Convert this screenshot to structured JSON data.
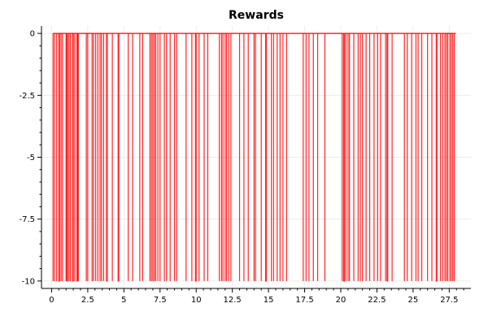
{
  "chart_data": {
    "type": "line",
    "title": "Rewards",
    "xlabel": "",
    "ylabel": "",
    "xlim": [
      -0.7,
      29.0
    ],
    "ylim": [
      -10.3,
      0.3
    ],
    "x_ticks": [
      0,
      2.5,
      5,
      7.5,
      10,
      12.5,
      15,
      17.5,
      20,
      22.5,
      25,
      27.5
    ],
    "x_tick_labels": [
      "0",
      "2.5",
      "5",
      "7.5",
      "10",
      "12.5",
      "15",
      "17.5",
      "20",
      "22.5",
      "25",
      "27.5"
    ],
    "y_ticks": [
      0,
      -2.5,
      -5,
      -7.5,
      -10
    ],
    "y_tick_labels": [
      "0",
      "-2.5",
      "-5",
      "-7.5",
      "-10"
    ],
    "grid": true,
    "legend": "none",
    "x_start": 0.1,
    "x_end": 27.95,
    "series": [
      {
        "color": "#ff0000",
        "baseline": 0,
        "spike_value": -10,
        "spikes": [
          [
            0.1,
            0.1
          ],
          [
            0.2,
            0.2
          ],
          [
            0.35,
            0.35
          ],
          [
            0.5,
            0.55
          ],
          [
            0.65,
            0.65
          ],
          [
            0.75,
            0.75
          ],
          [
            1.0,
            1.0
          ],
          [
            1.05,
            1.1
          ],
          [
            1.2,
            1.2
          ],
          [
            1.3,
            1.3
          ],
          [
            1.45,
            1.5
          ],
          [
            1.6,
            1.6
          ],
          [
            1.75,
            1.8
          ],
          [
            1.85,
            1.85
          ],
          [
            2.4,
            2.4
          ],
          [
            2.5,
            2.5
          ],
          [
            2.8,
            2.8
          ],
          [
            2.9,
            2.9
          ],
          [
            3.05,
            3.05
          ],
          [
            3.2,
            3.2
          ],
          [
            3.35,
            3.35
          ],
          [
            3.45,
            3.45
          ],
          [
            3.6,
            3.6
          ],
          [
            3.8,
            3.85
          ],
          [
            4.2,
            4.2
          ],
          [
            4.6,
            4.65
          ],
          [
            5.3,
            5.3
          ],
          [
            5.6,
            5.6
          ],
          [
            6.1,
            6.1
          ],
          [
            6.3,
            6.3
          ],
          [
            6.8,
            6.8
          ],
          [
            6.9,
            6.9
          ],
          [
            7.0,
            7.0
          ],
          [
            7.1,
            7.1
          ],
          [
            7.2,
            7.2
          ],
          [
            7.35,
            7.35
          ],
          [
            7.5,
            7.5
          ],
          [
            7.8,
            7.8
          ],
          [
            7.95,
            7.95
          ],
          [
            8.2,
            8.2
          ],
          [
            8.5,
            8.5
          ],
          [
            8.65,
            8.65
          ],
          [
            9.3,
            9.3
          ],
          [
            9.7,
            9.7
          ],
          [
            9.95,
            10.0
          ],
          [
            10.2,
            10.2
          ],
          [
            10.55,
            10.55
          ],
          [
            10.8,
            10.8
          ],
          [
            11.6,
            11.6
          ],
          [
            11.75,
            11.75
          ],
          [
            11.85,
            11.85
          ],
          [
            12.0,
            12.0
          ],
          [
            12.1,
            12.1
          ],
          [
            12.25,
            12.25
          ],
          [
            12.4,
            12.4
          ],
          [
            13.0,
            13.0
          ],
          [
            13.3,
            13.3
          ],
          [
            13.6,
            13.6
          ],
          [
            14.0,
            14.0
          ],
          [
            14.1,
            14.1
          ],
          [
            14.5,
            14.5
          ],
          [
            14.8,
            14.85
          ],
          [
            15.2,
            15.2
          ],
          [
            15.35,
            15.35
          ],
          [
            15.6,
            15.6
          ],
          [
            15.8,
            15.8
          ],
          [
            16.0,
            16.0
          ],
          [
            16.25,
            16.25
          ],
          [
            17.4,
            17.4
          ],
          [
            17.6,
            17.6
          ],
          [
            17.8,
            17.8
          ],
          [
            18.1,
            18.1
          ],
          [
            18.4,
            18.4
          ],
          [
            18.9,
            18.9
          ],
          [
            20.1,
            20.1
          ],
          [
            20.2,
            20.25
          ],
          [
            20.35,
            20.35
          ],
          [
            20.5,
            20.5
          ],
          [
            20.6,
            20.6
          ],
          [
            20.9,
            20.9
          ],
          [
            21.2,
            21.2
          ],
          [
            21.35,
            21.35
          ],
          [
            21.5,
            21.5
          ],
          [
            21.75,
            21.75
          ],
          [
            22.0,
            22.0
          ],
          [
            22.3,
            22.3
          ],
          [
            22.55,
            22.55
          ],
          [
            22.75,
            22.75
          ],
          [
            23.1,
            23.1
          ],
          [
            23.2,
            23.25
          ],
          [
            23.55,
            23.55
          ],
          [
            24.4,
            24.4
          ],
          [
            24.6,
            24.6
          ],
          [
            24.9,
            24.9
          ],
          [
            25.2,
            25.2
          ],
          [
            25.35,
            25.35
          ],
          [
            25.6,
            25.6
          ],
          [
            26.0,
            26.0
          ],
          [
            26.3,
            26.3
          ],
          [
            26.6,
            26.65
          ],
          [
            26.9,
            26.9
          ],
          [
            27.05,
            27.05
          ],
          [
            27.2,
            27.2
          ],
          [
            27.3,
            27.3
          ],
          [
            27.4,
            27.4
          ],
          [
            27.55,
            27.55
          ],
          [
            27.65,
            27.65
          ],
          [
            27.75,
            27.75
          ],
          [
            27.85,
            27.85
          ]
        ]
      }
    ]
  }
}
